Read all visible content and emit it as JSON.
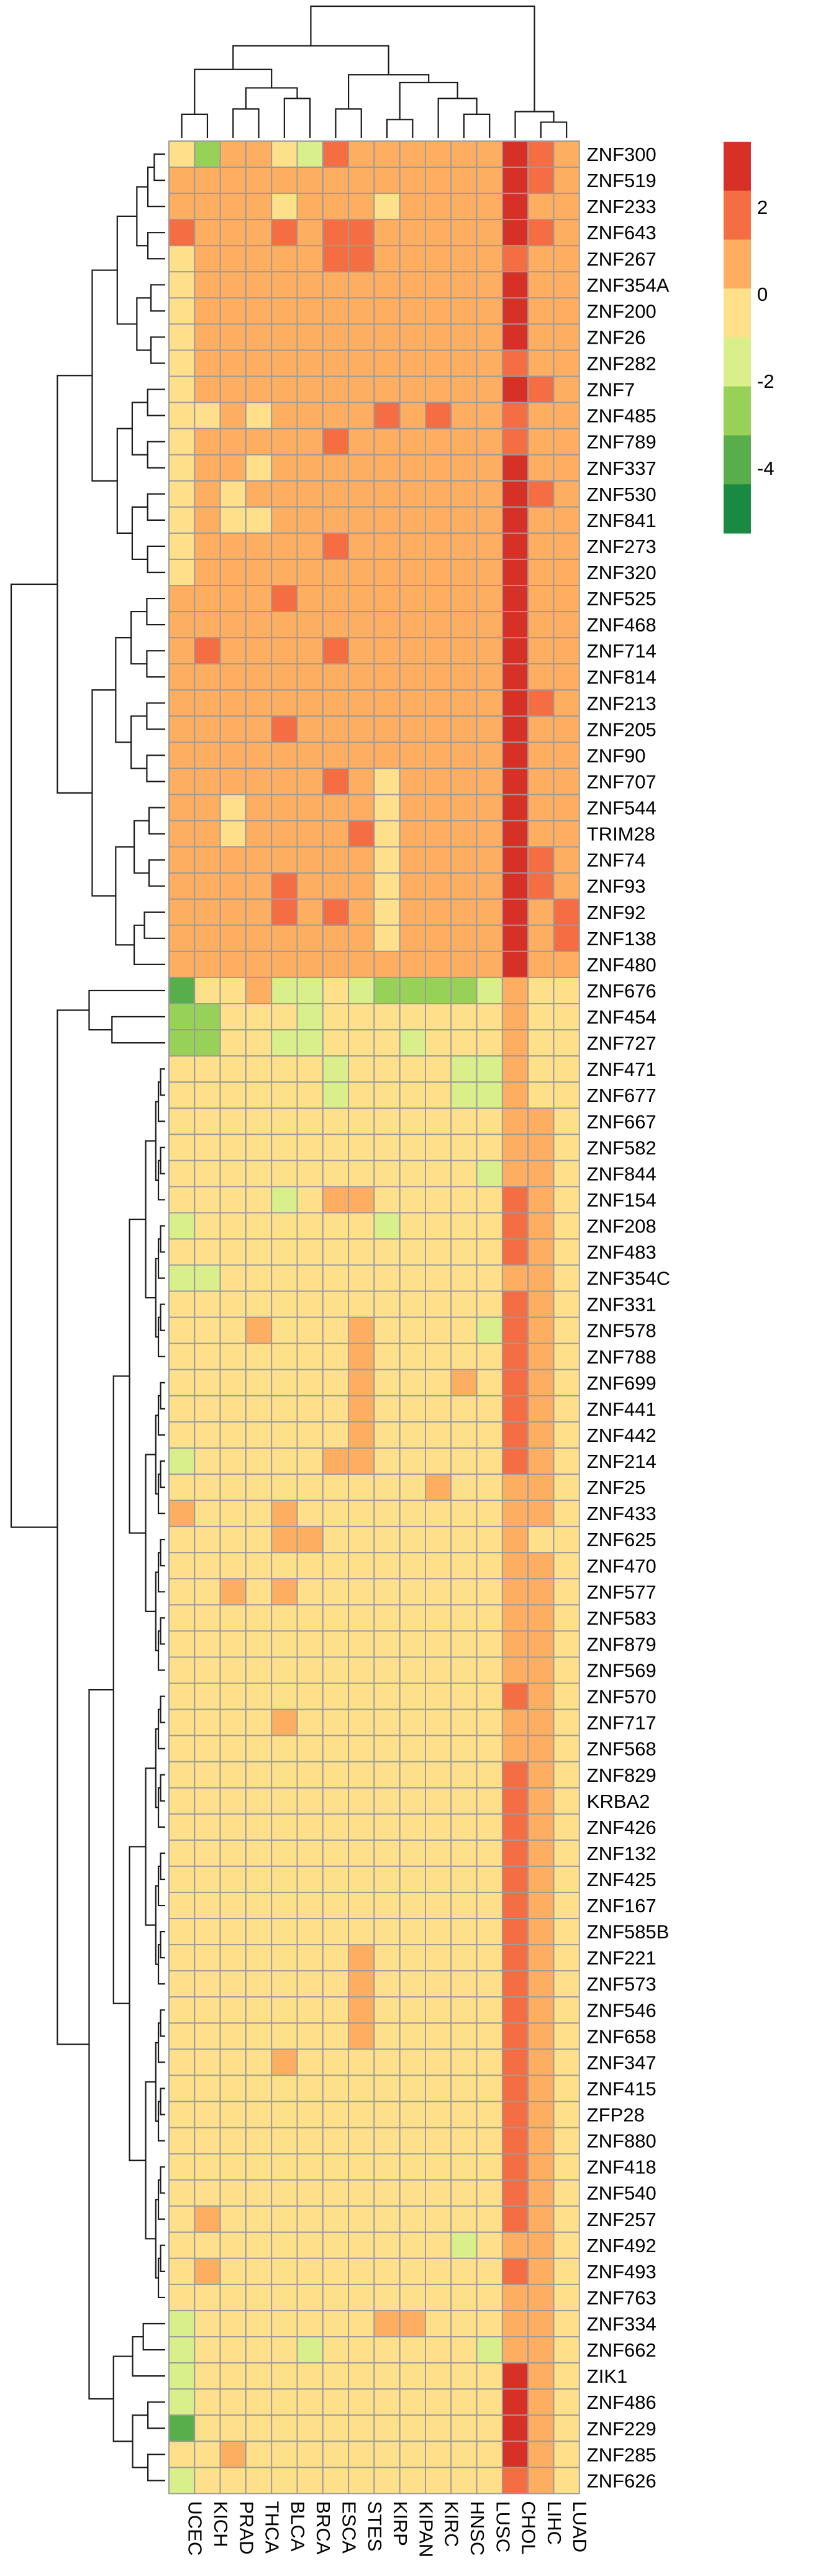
{
  "chart_data": {
    "type": "heatmap",
    "title": "",
    "xlabel": "",
    "ylabel": "",
    "columns": [
      "UCEC",
      "KICH",
      "PRAD",
      "THCA",
      "BLCA",
      "BRCA",
      "ESCA",
      "STES",
      "KIRP",
      "KIPAN",
      "KIRC",
      "HNSC",
      "LUSC",
      "CHOL",
      "LIHC",
      "LUAD"
    ],
    "rows": [
      "ZNF300",
      "ZNF519",
      "ZNF233",
      "ZNF643",
      "ZNF267",
      "ZNF354A",
      "ZNF200",
      "ZNF26",
      "ZNF282",
      "ZNF7",
      "ZNF485",
      "ZNF789",
      "ZNF337",
      "ZNF530",
      "ZNF841",
      "ZNF273",
      "ZNF320",
      "ZNF525",
      "ZNF468",
      "ZNF714",
      "ZNF814",
      "ZNF213",
      "ZNF205",
      "ZNF90",
      "ZNF707",
      "ZNF544",
      "TRIM28",
      "ZNF74",
      "ZNF93",
      "ZNF92",
      "ZNF138",
      "ZNF480",
      "ZNF676",
      "ZNF454",
      "ZNF727",
      "ZNF471",
      "ZNF677",
      "ZNF667",
      "ZNF582",
      "ZNF844",
      "ZNF154",
      "ZNF208",
      "ZNF483",
      "ZNF354C",
      "ZNF331",
      "ZNF578",
      "ZNF788",
      "ZNF699",
      "ZNF441",
      "ZNF442",
      "ZNF214",
      "ZNF25",
      "ZNF433",
      "ZNF625",
      "ZNF470",
      "ZNF577",
      "ZNF583",
      "ZNF879",
      "ZNF569",
      "ZNF570",
      "ZNF717",
      "ZNF568",
      "ZNF829",
      "KRBA2",
      "ZNF426",
      "ZNF132",
      "ZNF425",
      "ZNF167",
      "ZNF585B",
      "ZNF221",
      "ZNF573",
      "ZNF546",
      "ZNF658",
      "ZNF347",
      "ZNF415",
      "ZFP28",
      "ZNF880",
      "ZNF418",
      "ZNF540",
      "ZNF257",
      "ZNF492",
      "ZNF493",
      "ZNF763",
      "ZNF334",
      "ZNF662",
      "ZIK1",
      "ZNF486",
      "ZNF229",
      "ZNF285",
      "ZNF626"
    ],
    "values": [
      [
        -1,
        -3,
        1,
        1,
        0,
        -2,
        2,
        1,
        1,
        1,
        1,
        1,
        1,
        4,
        2,
        1
      ],
      [
        1,
        1,
        1,
        1,
        1,
        1,
        1,
        1,
        1,
        1,
        1,
        1,
        1,
        4,
        2,
        1
      ],
      [
        1,
        1,
        1,
        1,
        0,
        1,
        1,
        1,
        -1,
        1,
        1,
        1,
        1,
        4,
        1,
        1
      ],
      [
        2,
        1,
        1,
        1,
        2,
        1,
        2,
        2,
        1,
        1,
        1,
        1,
        1,
        4,
        2,
        1
      ],
      [
        0,
        1,
        1,
        1,
        1,
        1,
        2,
        2,
        1,
        1,
        1,
        1,
        1,
        2,
        1,
        1
      ],
      [
        0,
        1,
        1,
        1,
        1,
        1,
        1,
        1,
        1,
        1,
        1,
        1,
        1,
        3,
        1,
        1
      ],
      [
        0,
        1,
        1,
        1,
        1,
        1,
        1,
        1,
        1,
        1,
        1,
        1,
        1,
        3,
        1,
        1
      ],
      [
        0,
        1,
        1,
        1,
        1,
        1,
        1,
        1,
        1,
        1,
        1,
        1,
        1,
        3,
        1,
        1
      ],
      [
        0,
        1,
        1,
        1,
        1,
        1,
        1,
        1,
        1,
        1,
        1,
        1,
        1,
        2,
        1,
        1
      ],
      [
        0,
        1,
        1,
        1,
        1,
        1,
        1,
        1,
        1,
        1,
        1,
        1,
        1,
        3,
        2,
        1
      ],
      [
        0,
        -1,
        1,
        0,
        1,
        1,
        1,
        1,
        2,
        1,
        2,
        1,
        1,
        2,
        1,
        1
      ],
      [
        0,
        1,
        1,
        1,
        1,
        1,
        2,
        1,
        1,
        1,
        1,
        1,
        1,
        2,
        1,
        1
      ],
      [
        0,
        1,
        1,
        0,
        1,
        1,
        1,
        1,
        1,
        1,
        1,
        1,
        1,
        3,
        1,
        1
      ],
      [
        0,
        1,
        0,
        1,
        1,
        1,
        1,
        1,
        1,
        1,
        1,
        1,
        1,
        3,
        2,
        1
      ],
      [
        0,
        1,
        0,
        0,
        1,
        1,
        1,
        1,
        1,
        1,
        1,
        1,
        1,
        3,
        1,
        1
      ],
      [
        0,
        1,
        1,
        1,
        1,
        1,
        2,
        1,
        1,
        1,
        1,
        1,
        1,
        3,
        1,
        1
      ],
      [
        0,
        1,
        1,
        1,
        1,
        1,
        1,
        1,
        1,
        1,
        1,
        1,
        1,
        3,
        1,
        1
      ],
      [
        1,
        1,
        1,
        1,
        2,
        1,
        1,
        1,
        1,
        1,
        1,
        1,
        1,
        3,
        1,
        1
      ],
      [
        1,
        1,
        1,
        1,
        1,
        1,
        1,
        1,
        1,
        1,
        1,
        1,
        1,
        3,
        1,
        1
      ],
      [
        1,
        2,
        1,
        1,
        1,
        1,
        2,
        1,
        1,
        1,
        1,
        1,
        1,
        3,
        1,
        1
      ],
      [
        1,
        1,
        1,
        1,
        1,
        1,
        1,
        1,
        1,
        1,
        1,
        1,
        1,
        3,
        1,
        1
      ],
      [
        1,
        1,
        1,
        1,
        1,
        1,
        1,
        1,
        1,
        1,
        1,
        1,
        1,
        3,
        2,
        1
      ],
      [
        1,
        1,
        1,
        1,
        2,
        1,
        1,
        1,
        1,
        1,
        1,
        1,
        1,
        3,
        1,
        1
      ],
      [
        1,
        1,
        1,
        1,
        1,
        1,
        1,
        1,
        1,
        1,
        1,
        1,
        1,
        3,
        1,
        1
      ],
      [
        1,
        1,
        1,
        1,
        1,
        1,
        2,
        1,
        0,
        1,
        1,
        1,
        1,
        3,
        1,
        1
      ],
      [
        1,
        1,
        0,
        1,
        1,
        1,
        1,
        1,
        0,
        1,
        1,
        1,
        1,
        3,
        1,
        1
      ],
      [
        1,
        1,
        0,
        1,
        1,
        1,
        1,
        2,
        0,
        1,
        1,
        1,
        1,
        3,
        1,
        1
      ],
      [
        1,
        1,
        1,
        1,
        1,
        1,
        1,
        1,
        0,
        1,
        1,
        1,
        1,
        4,
        2,
        1
      ],
      [
        1,
        1,
        1,
        1,
        2,
        1,
        1,
        1,
        0,
        1,
        1,
        1,
        1,
        4,
        2,
        1
      ],
      [
        1,
        1,
        1,
        1,
        2,
        1,
        2,
        1,
        0,
        1,
        1,
        1,
        1,
        3,
        1,
        2
      ],
      [
        1,
        1,
        1,
        1,
        1,
        1,
        1,
        1,
        0,
        1,
        1,
        1,
        1,
        3,
        1,
        2
      ],
      [
        1,
        1,
        1,
        1,
        1,
        1,
        1,
        1,
        1,
        1,
        1,
        1,
        1,
        3,
        1,
        1
      ],
      [
        -4,
        0,
        -1,
        1,
        -2,
        -2,
        -1,
        -2,
        -3,
        -3,
        -3,
        -3,
        -2,
        1,
        0,
        0
      ],
      [
        -3,
        -3,
        -1,
        0,
        -1,
        -2,
        -1,
        -1,
        -1,
        -1,
        -1,
        -1,
        -1,
        1,
        0,
        0
      ],
      [
        -3,
        -3,
        -1,
        -1,
        -2,
        -2,
        -1,
        -1,
        -1,
        -2,
        -1,
        -1,
        -1,
        1,
        0,
        -1
      ],
      [
        -1,
        0,
        -1,
        -1,
        -1,
        -1,
        -2,
        -1,
        -1,
        -1,
        -1,
        -2,
        -2,
        1,
        0,
        0
      ],
      [
        -1,
        0,
        -1,
        -1,
        -1,
        -1,
        -2,
        -1,
        -1,
        -1,
        -1,
        -2,
        -2,
        1,
        0,
        0
      ],
      [
        0,
        0,
        -1,
        -1,
        -1,
        -1,
        -1,
        -1,
        -1,
        -1,
        -1,
        -1,
        -1,
        1,
        1,
        0
      ],
      [
        0,
        0,
        0,
        0,
        -1,
        -1,
        -1,
        -1,
        -1,
        -1,
        -1,
        -1,
        -1,
        1,
        1,
        0
      ],
      [
        0,
        0,
        -1,
        -1,
        -1,
        -1,
        -1,
        -1,
        -1,
        -1,
        -1,
        -1,
        -2,
        1,
        1,
        0
      ],
      [
        -1,
        0,
        -1,
        -1,
        -2,
        -1,
        1,
        1,
        -1,
        -1,
        -1,
        -1,
        -1,
        2,
        1,
        0
      ],
      [
        -2,
        0,
        -1,
        -1,
        -1,
        -1,
        -1,
        -1,
        -2,
        -1,
        -1,
        -1,
        -1,
        2,
        1,
        0
      ],
      [
        -1,
        0,
        -1,
        -1,
        -1,
        -1,
        -1,
        -1,
        -1,
        -1,
        -1,
        -1,
        -1,
        2,
        1,
        0
      ],
      [
        -2,
        -2,
        -1,
        -1,
        -1,
        -1,
        -1,
        -1,
        -1,
        -1,
        -1,
        -1,
        -1,
        1,
        1,
        0
      ],
      [
        0,
        -1,
        -1,
        0,
        -1,
        -1,
        -1,
        0,
        -1,
        -1,
        -1,
        -1,
        -1,
        2,
        1,
        0
      ],
      [
        0,
        -1,
        0,
        1,
        0,
        0,
        0,
        1,
        0,
        0,
        0,
        0,
        -2,
        2,
        1,
        0
      ],
      [
        0,
        0,
        0,
        0,
        0,
        0,
        0,
        1,
        0,
        0,
        0,
        0,
        0,
        2,
        1,
        0
      ],
      [
        0,
        0,
        0,
        0,
        0,
        0,
        0,
        1,
        0,
        0,
        0,
        1,
        0,
        2,
        1,
        0
      ],
      [
        0,
        0,
        0,
        0,
        0,
        0,
        0,
        1,
        0,
        0,
        0,
        0,
        0,
        2,
        1,
        0
      ],
      [
        0,
        0,
        0,
        0,
        0,
        0,
        0,
        1,
        0,
        0,
        0,
        0,
        0,
        2,
        1,
        0
      ],
      [
        -2,
        0,
        0,
        0,
        0,
        0,
        1,
        1,
        0,
        0,
        0,
        0,
        0,
        2,
        1,
        0
      ],
      [
        0,
        0,
        0,
        0,
        0,
        0,
        0,
        0,
        -1,
        -1,
        1,
        -1,
        0,
        1,
        1,
        0
      ],
      [
        1,
        0,
        0,
        0,
        1,
        0,
        0,
        0,
        0,
        0,
        0,
        0,
        0,
        1,
        1,
        0
      ],
      [
        0,
        0,
        0,
        0,
        1,
        1,
        0,
        0,
        0,
        0,
        0,
        0,
        0,
        1,
        0,
        0
      ],
      [
        0,
        0,
        0,
        0,
        0,
        0,
        0,
        0,
        0,
        0,
        0,
        0,
        0,
        1,
        1,
        0
      ],
      [
        0,
        -1,
        1,
        0,
        1,
        0,
        0,
        0,
        0,
        0,
        0,
        0,
        0,
        1,
        1,
        0
      ],
      [
        0,
        0,
        0,
        0,
        0,
        0,
        0,
        0,
        0,
        0,
        0,
        0,
        0,
        1,
        1,
        0
      ],
      [
        0,
        0,
        0,
        0,
        0,
        0,
        0,
        0,
        0,
        0,
        0,
        0,
        0,
        1,
        1,
        0
      ],
      [
        0,
        0,
        0,
        0,
        0,
        0,
        0,
        0,
        0,
        0,
        0,
        0,
        0,
        1,
        1,
        0
      ],
      [
        0,
        0,
        0,
        0,
        0,
        0,
        0,
        0,
        0,
        0,
        0,
        0,
        0,
        2,
        1,
        0
      ],
      [
        0,
        0,
        0,
        0,
        1,
        0,
        0,
        0,
        0,
        0,
        0,
        -1,
        0,
        1,
        1,
        0
      ],
      [
        0,
        0,
        0,
        0,
        0,
        0,
        0,
        0,
        0,
        0,
        0,
        -1,
        0,
        1,
        1,
        0
      ],
      [
        0,
        0,
        0,
        0,
        0,
        0,
        0,
        0,
        0,
        0,
        0,
        -1,
        0,
        2,
        1,
        0
      ],
      [
        0,
        0,
        0,
        0,
        0,
        0,
        0,
        0,
        0,
        0,
        0,
        0,
        0,
        2,
        1,
        0
      ],
      [
        0,
        0,
        0,
        0,
        0,
        0,
        0,
        0,
        0,
        0,
        -1,
        -1,
        0,
        2,
        1,
        0
      ],
      [
        0,
        0,
        0,
        0,
        0,
        0,
        0,
        0,
        0,
        0,
        -1,
        -1,
        0,
        2,
        1,
        0
      ],
      [
        0,
        0,
        0,
        0,
        0,
        0,
        0,
        0,
        0,
        0,
        -1,
        -1,
        0,
        2,
        1,
        0
      ],
      [
        0,
        0,
        0,
        0,
        0,
        0,
        0,
        0,
        -1,
        0,
        -1,
        -1,
        0,
        2,
        1,
        0
      ],
      [
        0,
        0,
        0,
        0,
        0,
        0,
        0,
        0,
        -1,
        -1,
        -1,
        -1,
        0,
        2,
        1,
        0
      ],
      [
        0,
        0,
        0,
        0,
        0,
        -1,
        -1,
        1,
        -1,
        -1,
        -1,
        -1,
        0,
        2,
        1,
        0
      ],
      [
        0,
        0,
        0,
        -1,
        0,
        -1,
        -1,
        1,
        -1,
        -1,
        -1,
        -1,
        0,
        2,
        1,
        0
      ],
      [
        0,
        0,
        0,
        0,
        0,
        -1,
        -1,
        1,
        -1,
        -1,
        -1,
        -1,
        0,
        2,
        1,
        0
      ],
      [
        0,
        0,
        0,
        -1,
        0,
        -1,
        -1,
        1,
        -1,
        -1,
        -1,
        -1,
        0,
        2,
        1,
        0
      ],
      [
        0,
        0,
        0,
        0,
        1,
        -1,
        -1,
        0,
        -1,
        -1,
        -1,
        -1,
        0,
        2,
        1,
        0
      ],
      [
        0,
        0,
        0,
        0,
        0,
        -1,
        -1,
        0,
        -1,
        -1,
        -1,
        -1,
        0,
        2,
        1,
        0
      ],
      [
        0,
        0,
        0,
        0,
        0,
        -1,
        -1,
        0,
        -1,
        -1,
        -1,
        -1,
        0,
        2,
        1,
        0
      ],
      [
        0,
        0,
        0,
        0,
        0,
        -1,
        -1,
        0,
        -1,
        -1,
        -1,
        -1,
        0,
        2,
        1,
        0
      ],
      [
        0,
        0,
        0,
        0,
        0,
        -1,
        -1,
        0,
        -1,
        -1,
        -1,
        -1,
        0,
        2,
        1,
        0
      ],
      [
        0,
        0,
        0,
        0,
        0,
        -1,
        -1,
        0,
        -1,
        -1,
        -1,
        -1,
        0,
        2,
        1,
        0
      ],
      [
        0,
        1,
        -1,
        0,
        0,
        -1,
        -1,
        0,
        -1,
        -1,
        -1,
        -1,
        0,
        2,
        1,
        0
      ],
      [
        0,
        0,
        -1,
        0,
        0,
        -1,
        -1,
        0,
        -1,
        -1,
        -1,
        -2,
        0,
        1,
        1,
        0
      ],
      [
        0,
        1,
        0,
        0,
        0,
        -1,
        -1,
        0,
        0,
        -1,
        -1,
        -1,
        -1,
        2,
        1,
        0
      ],
      [
        0,
        0,
        0,
        0,
        0,
        -1,
        -1,
        0,
        0,
        -1,
        -1,
        -1,
        -1,
        1,
        1,
        0
      ],
      [
        -2,
        0,
        0,
        0,
        0,
        0,
        0,
        0,
        1,
        1,
        0,
        -1,
        0,
        1,
        1,
        0
      ],
      [
        -2,
        0,
        0,
        0,
        0,
        -2,
        -1,
        0,
        0,
        0,
        0,
        0,
        -2,
        1,
        1,
        0
      ],
      [
        -2,
        0,
        0,
        0,
        0,
        0,
        0,
        0,
        0,
        0,
        0,
        0,
        0,
        3,
        1,
        0
      ],
      [
        -2,
        0,
        0,
        0,
        0,
        0,
        0,
        0,
        0,
        0,
        0,
        0,
        0,
        3,
        1,
        0
      ],
      [
        -4,
        0,
        0,
        0,
        0,
        0,
        -1,
        -1,
        0,
        0,
        0,
        -1,
        0,
        3,
        1,
        0
      ],
      [
        -1,
        0,
        1,
        0,
        0,
        0,
        -1,
        0,
        0,
        0,
        0,
        0,
        0,
        3,
        1,
        0
      ],
      [
        -2,
        0,
        0,
        0,
        0,
        0,
        0,
        0,
        0,
        0,
        0,
        0,
        0,
        2,
        1,
        0
      ]
    ],
    "legend": {
      "tick_labels": [
        "2",
        "0",
        "-2",
        "-4"
      ],
      "tick_values": [
        2,
        0,
        -2,
        -4
      ],
      "range": [
        -5.5,
        3.5
      ],
      "placement": "top-right"
    },
    "colors": [
      "#1a8a43",
      "#58ae4a",
      "#98d158",
      "#d9ef8b",
      "#fee08b",
      "#fdae61",
      "#f46d43",
      "#d73027"
    ],
    "cell_border": "#9b9b9b",
    "dendrograms": {
      "rows": true,
      "columns": true
    }
  }
}
